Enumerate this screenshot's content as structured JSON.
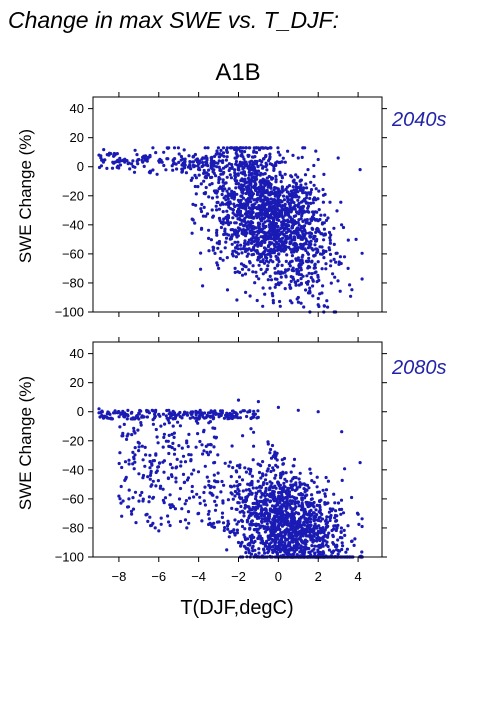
{
  "page": {
    "title": "Change in max SWE vs. T_DJF:",
    "scenario": "A1B",
    "colors": {
      "points": "#1a1ab4",
      "period_label": "#2323aa",
      "axis": "#000000"
    }
  },
  "chart_data": [
    {
      "type": "scatter",
      "period_label": "2040s",
      "ylabel": "SWE Change (%)",
      "xlim": [
        -9.3,
        5.2
      ],
      "ylim": [
        -100,
        48
      ],
      "yticks": [
        -100,
        -80,
        -60,
        -40,
        -20,
        0,
        20,
        40
      ],
      "xticks": [
        -8,
        -6,
        -4,
        -2,
        0,
        2,
        4
      ],
      "show_x_ticklabels": false,
      "point_count_estimate": 2000,
      "cluster_center_x": -0.5,
      "cluster_center_y": -38,
      "sample_points": [
        [
          -9.0,
          8
        ],
        [
          -8.5,
          8
        ],
        [
          -7.0,
          5
        ],
        [
          -6.0,
          4
        ],
        [
          -5.0,
          3
        ],
        [
          -4.0,
          2
        ],
        [
          -2.0,
          12
        ],
        [
          -1.0,
          13
        ],
        [
          0.0,
          10
        ],
        [
          1.0,
          6
        ],
        [
          2.0,
          5
        ],
        [
          3.0,
          6
        ],
        [
          -3.8,
          -82
        ],
        [
          -3.0,
          -70
        ],
        [
          -2.0,
          -60
        ],
        [
          0.0,
          -80
        ],
        [
          1.0,
          -90
        ],
        [
          2.0,
          -95
        ],
        [
          2.8,
          -100
        ],
        [
          3.5,
          -70
        ],
        [
          3.9,
          -50
        ],
        [
          4.1,
          -2
        ]
      ]
    },
    {
      "type": "scatter",
      "period_label": "2080s",
      "ylabel": "SWE Change (%)",
      "xlabel": "T(DJF,degC)",
      "xlim": [
        -9.3,
        5.2
      ],
      "ylim": [
        -100,
        48
      ],
      "yticks": [
        -100,
        -80,
        -60,
        -40,
        -20,
        0,
        20,
        40
      ],
      "xticks": [
        -8,
        -6,
        -4,
        -2,
        0,
        2,
        4
      ],
      "xticklabels": [
        "−8",
        "−6",
        "−4",
        "−2",
        "0",
        "2",
        "4"
      ],
      "yticklabels": [
        "−100",
        "−80",
        "−60",
        "−40",
        "−20",
        "0",
        "20",
        "40"
      ],
      "show_x_ticklabels": true,
      "point_count_estimate": 2000,
      "cluster_center_x": 0.5,
      "cluster_center_y": -75,
      "sample_points": [
        [
          -9.0,
          2
        ],
        [
          -8.0,
          0
        ],
        [
          -7.0,
          -1
        ],
        [
          -6.0,
          -2
        ],
        [
          -4.0,
          -5
        ],
        [
          -2.0,
          8
        ],
        [
          -1.0,
          7
        ],
        [
          0.0,
          3
        ],
        [
          1.0,
          1
        ],
        [
          2.0,
          0
        ],
        [
          -7.5,
          -60
        ],
        [
          -6.0,
          -82
        ],
        [
          -4.0,
          -70
        ],
        [
          -2.0,
          -90
        ],
        [
          0.0,
          -95
        ],
        [
          2.0,
          -99
        ],
        [
          3.0,
          -100
        ],
        [
          3.8,
          -92
        ],
        [
          4.1,
          -35
        ]
      ]
    }
  ]
}
